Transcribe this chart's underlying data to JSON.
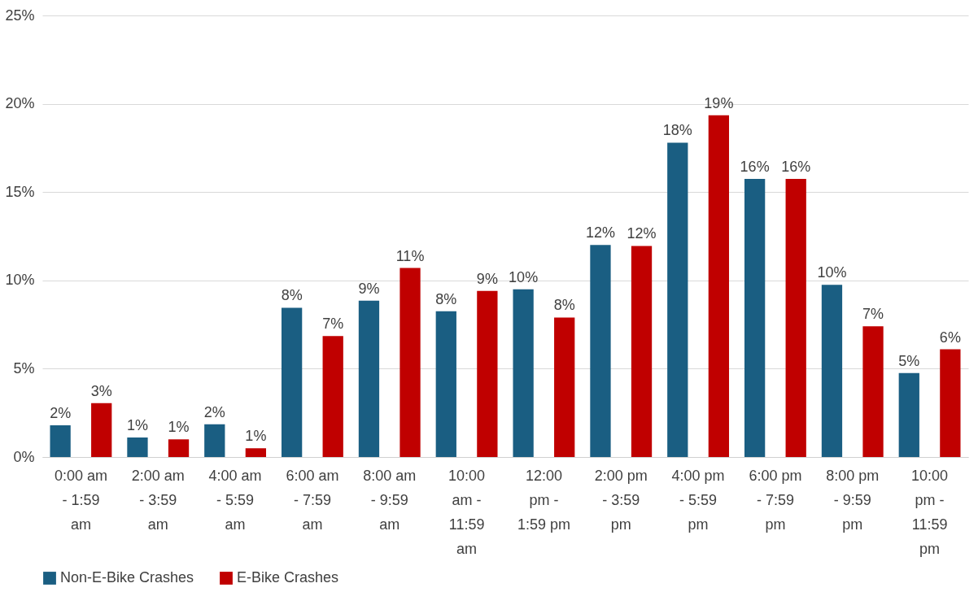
{
  "chart_data": {
    "type": "bar",
    "categories": [
      "0:00 am - 1:59 am",
      "2:00 am - 3:59 am",
      "4:00 am - 5:59 am",
      "6:00 am - 7:59 am",
      "8:00 am - 9:59 am",
      "10:00 am - 11:59 am",
      "12:00 pm - 1:59 pm",
      "2:00 pm - 3:59 pm",
      "4:00 pm - 5:59 pm",
      "6:00 pm - 7:59 pm",
      "8:00 pm - 9:59 pm",
      "10:00 pm - 11:59 pm"
    ],
    "series": [
      {
        "name": "Non-E-Bike Crashes",
        "color": "#1a5e82",
        "values": [
          1.8,
          1.1,
          1.85,
          8.45,
          8.85,
          8.25,
          9.5,
          12.0,
          17.8,
          15.75,
          9.75,
          4.75
        ],
        "value_labels": [
          "2%",
          "1%",
          "2%",
          "8%",
          "9%",
          "8%",
          "10%",
          "12%",
          "18%",
          "16%",
          "10%",
          "5%"
        ]
      },
      {
        "name": "E-Bike Crashes",
        "color": "#c00000",
        "values": [
          3.05,
          1.0,
          0.5,
          6.85,
          10.7,
          9.4,
          7.9,
          11.95,
          19.35,
          15.75,
          7.4,
          6.1
        ],
        "value_labels": [
          "3%",
          "1%",
          "1%",
          "7%",
          "11%",
          "9%",
          "8%",
          "12%",
          "19%",
          "16%",
          "7%",
          "6%"
        ]
      }
    ],
    "ylim": [
      0,
      25
    ],
    "yticks": [
      {
        "value": 0,
        "label": "0%"
      },
      {
        "value": 5,
        "label": "5%"
      },
      {
        "value": 10,
        "label": "10%"
      },
      {
        "value": 15,
        "label": "15%"
      },
      {
        "value": 20,
        "label": "20%"
      },
      {
        "value": 25,
        "label": "25%"
      }
    ],
    "grid": "y",
    "legend": "bottom"
  }
}
